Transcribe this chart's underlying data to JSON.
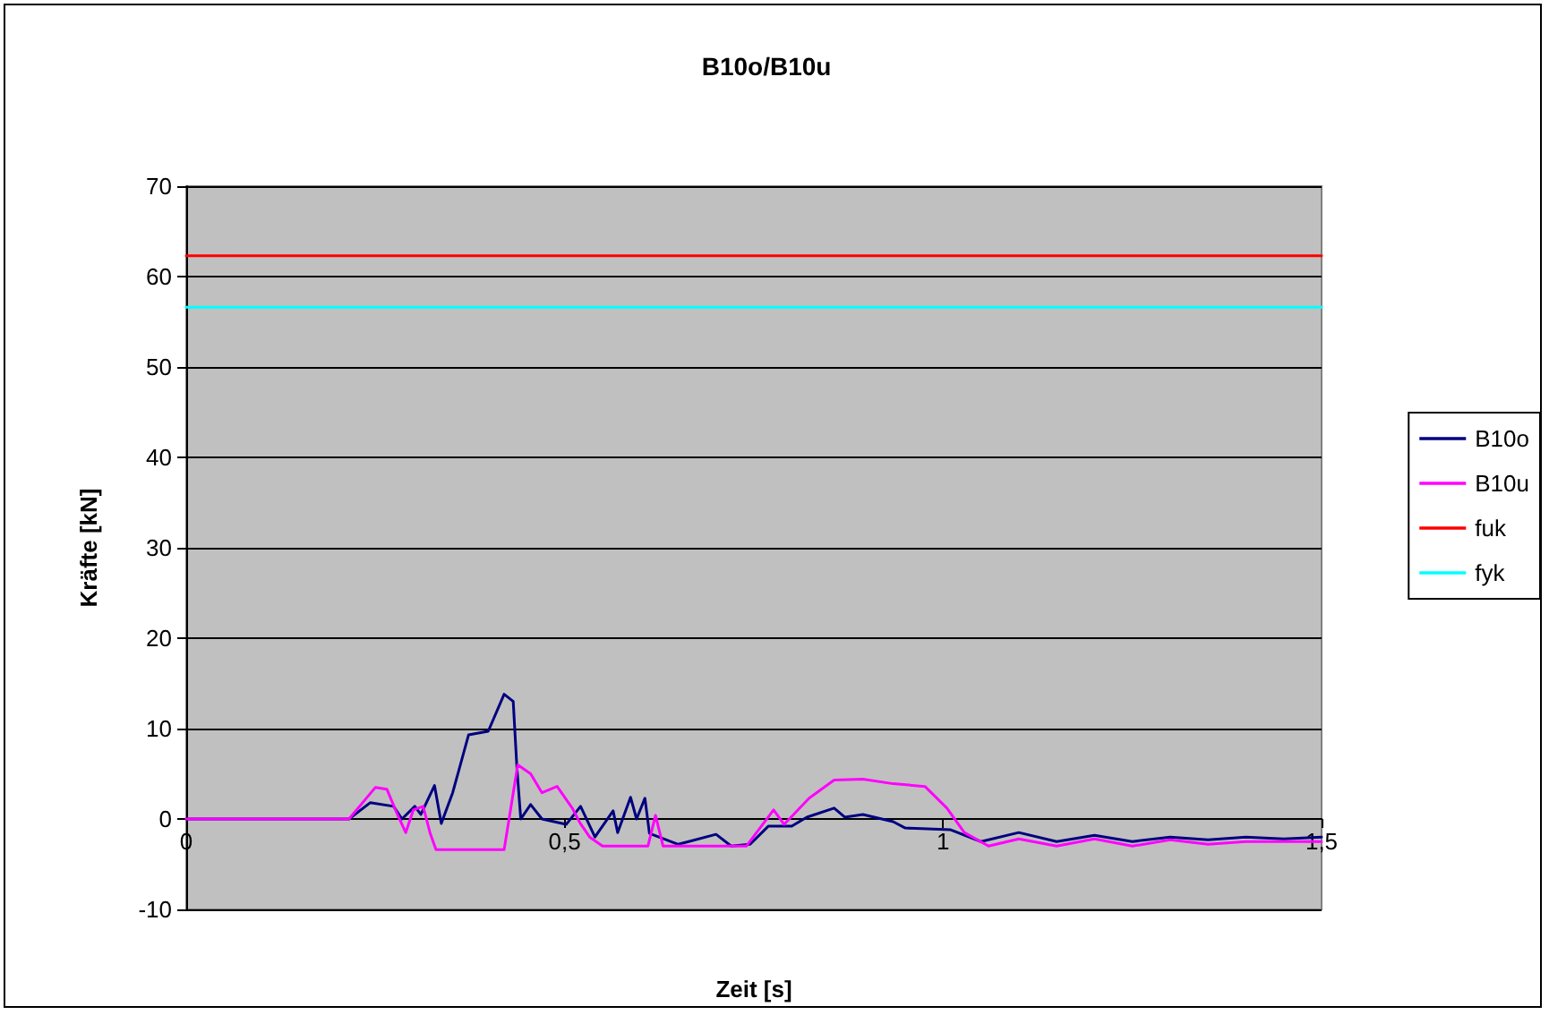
{
  "chart_data": {
    "type": "line",
    "title": "B10o/B10u",
    "xlabel": "Zeit [s]",
    "ylabel": "Kräfte [kN]",
    "xlim": [
      0,
      1.5
    ],
    "xticks": [
      0,
      {
        "value": 0.5,
        "label": "0,5"
      },
      1,
      {
        "value": 1.5,
        "label": "1,5"
      }
    ],
    "ylim": [
      -10,
      70
    ],
    "yticks": [
      -10,
      0,
      10,
      20,
      30,
      40,
      50,
      60,
      70
    ],
    "grid": "y",
    "legend": "right",
    "marker": "none",
    "line_style": "solid",
    "series": [
      {
        "name": "B10o",
        "color": "#000080",
        "x": [
          0,
          0.215,
          0.243,
          0.274,
          0.285,
          0.302,
          0.31,
          0.328,
          0.337,
          0.352,
          0.373,
          0.399,
          0.42,
          0.432,
          0.437,
          0.442,
          0.455,
          0.47,
          0.502,
          0.521,
          0.54,
          0.564,
          0.57,
          0.587,
          0.595,
          0.606,
          0.612,
          0.65,
          0.7,
          0.72,
          0.745,
          0.769,
          0.8,
          0.82,
          0.856,
          0.87,
          0.894,
          0.934,
          0.95,
          1.01,
          1.05,
          1.1,
          1.15,
          1.2,
          1.25,
          1.3,
          1.35,
          1.4,
          1.45,
          1.5
        ],
        "values": [
          0,
          0,
          1.8,
          1.4,
          0,
          1.4,
          0.5,
          3.7,
          -0.5,
          2.9,
          9.3,
          9.7,
          13.8,
          13,
          5.5,
          0,
          1.6,
          0,
          -0.6,
          1.4,
          -2,
          0.9,
          -1.5,
          2.4,
          0,
          2.3,
          -1.6,
          -2.8,
          -1.7,
          -3,
          -2.8,
          -0.8,
          -0.8,
          0.2,
          1.2,
          0.2,
          0.5,
          -0.3,
          -1,
          -1.2,
          -2.5,
          -1.5,
          -2.5,
          -1.8,
          -2.5,
          -2,
          -2.3,
          -2,
          -2.2,
          -2
        ]
      },
      {
        "name": "B10u",
        "color": "#ff00ff",
        "x": [
          0,
          0.215,
          0.25,
          0.265,
          0.28,
          0.29,
          0.3,
          0.313,
          0.322,
          0.33,
          0.42,
          0.438,
          0.455,
          0.47,
          0.49,
          0.51,
          0.52,
          0.533,
          0.55,
          0.61,
          0.62,
          0.63,
          0.74,
          0.776,
          0.79,
          0.823,
          0.856,
          0.894,
          0.934,
          0.976,
          1.005,
          1.028,
          1.06,
          1.1,
          1.15,
          1.2,
          1.25,
          1.3,
          1.35,
          1.4,
          1.45,
          1.5
        ],
        "values": [
          0,
          0,
          3.5,
          3.3,
          0.3,
          -1.5,
          1,
          1.4,
          -1.5,
          -3.4,
          -3.4,
          6,
          5,
          2.9,
          3.6,
          1.2,
          -0.4,
          -2,
          -3,
          -3,
          0.4,
          -3,
          -3,
          1,
          -0.6,
          2.3,
          4.3,
          4.4,
          3.9,
          3.6,
          1.2,
          -1.5,
          -3,
          -2.2,
          -3,
          -2.2,
          -3,
          -2.3,
          -2.8,
          -2.5,
          -2.5,
          -2.5
        ]
      },
      {
        "name": "fuk",
        "color": "#ff0000",
        "x": [
          0,
          1.5
        ],
        "values": [
          62.3,
          62.3
        ]
      },
      {
        "name": "fyk",
        "color": "#00ffff",
        "x": [
          0,
          1.5
        ],
        "values": [
          56.6,
          56.6
        ]
      }
    ]
  }
}
